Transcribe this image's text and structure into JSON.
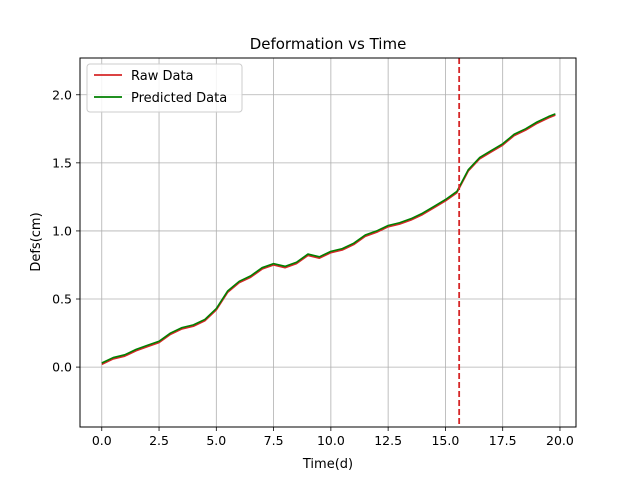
{
  "chart_data": {
    "type": "line",
    "title": "Deformation vs Time",
    "xlabel": "Time(d)",
    "ylabel": "Defs(cm)",
    "xlim": [
      -0.95,
      20.7
    ],
    "ylim": [
      -0.44,
      2.27
    ],
    "xticks": [
      0.0,
      2.5,
      5.0,
      7.5,
      10.0,
      12.5,
      15.0,
      17.5,
      20.0
    ],
    "xtick_labels": [
      "0.0",
      "2.5",
      "5.0",
      "7.5",
      "10.0",
      "12.5",
      "15.0",
      "17.5",
      "20.0"
    ],
    "yticks": [
      0.0,
      0.5,
      1.0,
      1.5,
      2.0
    ],
    "ytick_labels": [
      "0.0",
      "0.5",
      "1.0",
      "1.5",
      "2.0"
    ],
    "grid": true,
    "legend_position": "top-left",
    "vertical_line": {
      "x": 15.6,
      "color": "#d62728",
      "style": "dashed"
    },
    "series": [
      {
        "name": "Raw Data",
        "color": "#d62728",
        "x": [
          0.0,
          0.5,
          1.0,
          1.5,
          2.0,
          2.5,
          3.0,
          3.5,
          4.0,
          4.5,
          5.0,
          5.5,
          6.0,
          6.5,
          7.0,
          7.5,
          8.0,
          8.5,
          9.0,
          9.5,
          10.0,
          10.5,
          11.0,
          11.5,
          12.0,
          12.5,
          13.0,
          13.5,
          14.0,
          14.5,
          15.0,
          15.5,
          16.0,
          16.5,
          17.0,
          17.5,
          18.0,
          18.5,
          19.0,
          19.5,
          19.8
        ],
        "y": [
          0.02,
          0.06,
          0.08,
          0.12,
          0.15,
          0.18,
          0.24,
          0.28,
          0.3,
          0.34,
          0.42,
          0.55,
          0.62,
          0.66,
          0.72,
          0.75,
          0.73,
          0.76,
          0.82,
          0.8,
          0.84,
          0.86,
          0.9,
          0.96,
          0.99,
          1.03,
          1.05,
          1.08,
          1.12,
          1.17,
          1.22,
          1.28,
          1.44,
          1.53,
          1.58,
          1.63,
          1.7,
          1.74,
          1.79,
          1.83,
          1.85
        ]
      },
      {
        "name": "Predicted Data",
        "color": "#008000",
        "x": [
          0.0,
          0.5,
          1.0,
          1.5,
          2.0,
          2.5,
          3.0,
          3.5,
          4.0,
          4.5,
          5.0,
          5.5,
          6.0,
          6.5,
          7.0,
          7.5,
          8.0,
          8.5,
          9.0,
          9.5,
          10.0,
          10.5,
          11.0,
          11.5,
          12.0,
          12.5,
          13.0,
          13.5,
          14.0,
          14.5,
          15.0,
          15.5,
          16.0,
          16.5,
          17.0,
          17.5,
          18.0,
          18.5,
          19.0,
          19.5,
          19.8
        ],
        "y": [
          0.03,
          0.07,
          0.09,
          0.13,
          0.16,
          0.19,
          0.25,
          0.29,
          0.31,
          0.35,
          0.43,
          0.56,
          0.63,
          0.67,
          0.73,
          0.76,
          0.74,
          0.77,
          0.83,
          0.81,
          0.85,
          0.87,
          0.91,
          0.97,
          1.0,
          1.04,
          1.06,
          1.09,
          1.13,
          1.18,
          1.23,
          1.29,
          1.45,
          1.54,
          1.59,
          1.64,
          1.71,
          1.75,
          1.8,
          1.84,
          1.86
        ]
      }
    ]
  }
}
